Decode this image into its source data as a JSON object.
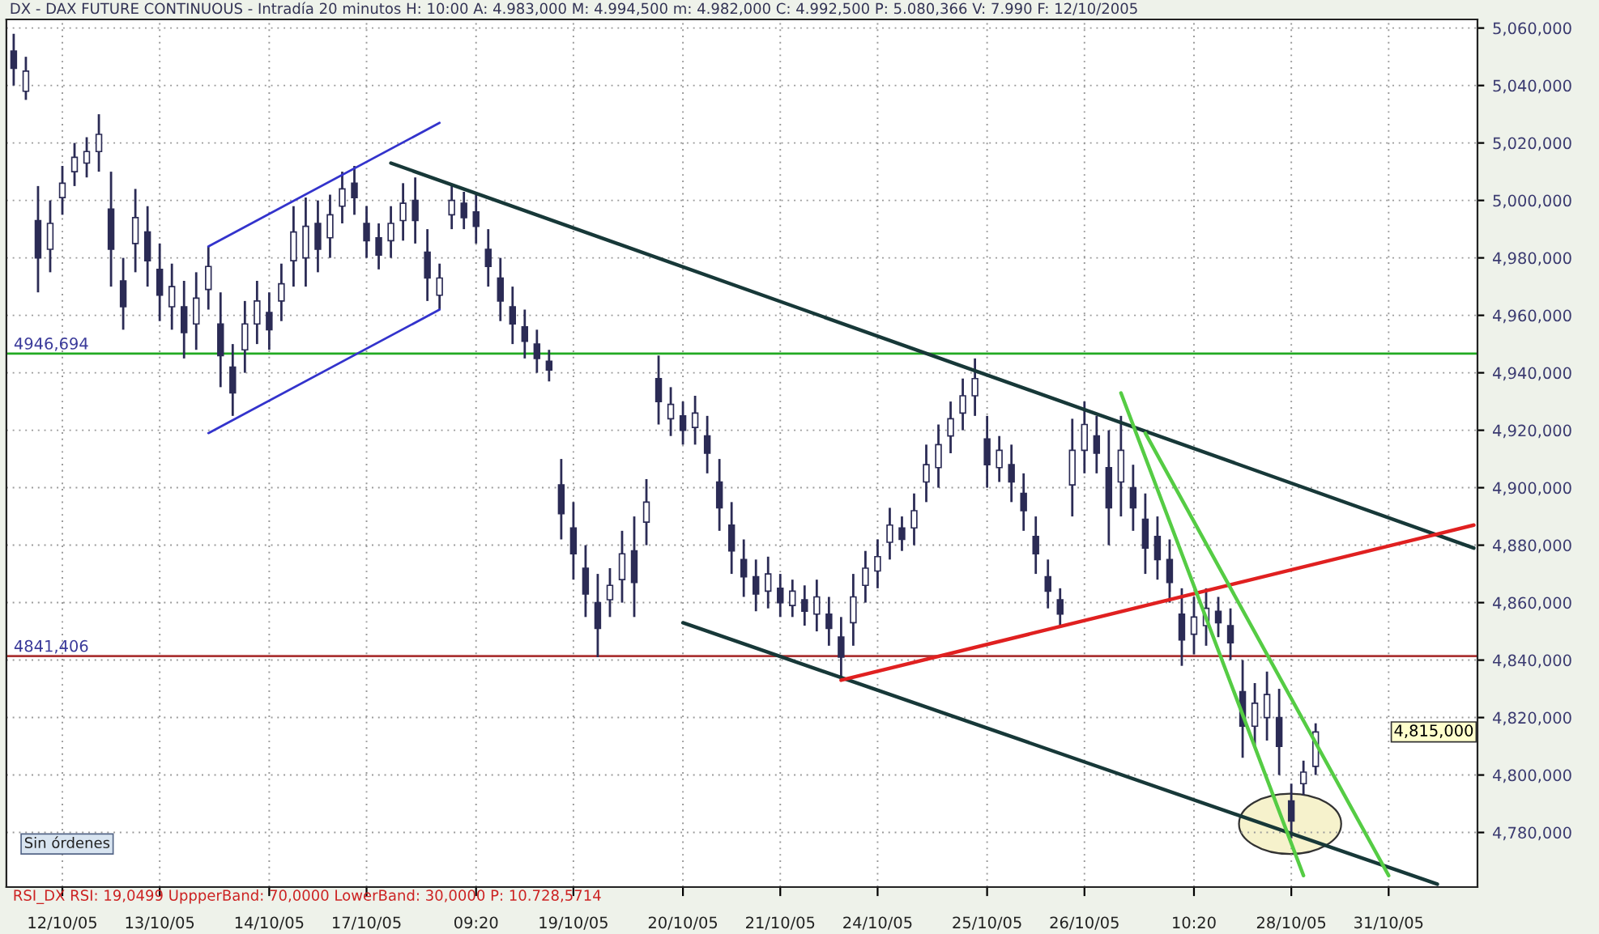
{
  "chart_data": {
    "type": "candlestick",
    "title": "DX - DAX FUTURE CONTINUOUS - Intradía 20 minutos H: 10:00 A: 4.983,000 M: 4.994,500 m: 4.982,000 C: 4.992,500 P: 5.080,366 V: 7.990 F: 12/10/2005",
    "categories": [
      null,
      null,
      null,
      null,
      "12/10/05",
      null,
      null,
      null,
      null,
      null,
      null,
      null,
      "13/10/05",
      null,
      null,
      null,
      null,
      null,
      null,
      null,
      null,
      "14/10/05",
      null,
      null,
      null,
      null,
      null,
      null,
      null,
      "17/10/05",
      null,
      null,
      null,
      null,
      null,
      null,
      null,
      null,
      "09:20",
      null,
      null,
      null,
      null,
      null,
      null,
      null,
      "19/10/05",
      null,
      null,
      null,
      null,
      null,
      null,
      null,
      null,
      "20/10/05",
      null,
      null,
      null,
      null,
      null,
      null,
      null,
      "21/10/05",
      null,
      null,
      null,
      null,
      null,
      null,
      null,
      "24/10/05",
      null,
      null,
      null,
      null,
      null,
      null,
      null,
      null,
      "25/10/05",
      null,
      null,
      null,
      null,
      null,
      null,
      null,
      "26/10/05",
      null,
      null,
      null,
      null,
      null,
      null,
      null,
      null,
      "10:20",
      null,
      null,
      null,
      null,
      null,
      null,
      null,
      "28/10/05",
      null,
      null,
      null,
      null,
      null,
      null,
      null,
      "31/10/05",
      null,
      null,
      null,
      null,
      null,
      null,
      null
    ],
    "ylim": [
      4761000,
      5063000
    ],
    "yticks": [
      {
        "value": 4780000,
        "label": "4,780,000"
      },
      {
        "value": 4800000,
        "label": "4,800,000"
      },
      {
        "value": 4820000,
        "label": "4,820,000"
      },
      {
        "value": 4840000,
        "label": "4,840,000"
      },
      {
        "value": 4860000,
        "label": "4,860,000"
      },
      {
        "value": 4880000,
        "label": "4,880,000"
      },
      {
        "value": 4900000,
        "label": "4,900,000"
      },
      {
        "value": 4920000,
        "label": "4,920,000"
      },
      {
        "value": 4940000,
        "label": "4,940,000"
      },
      {
        "value": 4960000,
        "label": "4,960,000"
      },
      {
        "value": 4980000,
        "label": "4,980,000"
      },
      {
        "value": 5000000,
        "label": "5,000,000"
      },
      {
        "value": 5020000,
        "label": "5,020,000"
      },
      {
        "value": 5040000,
        "label": "5,040,000"
      },
      {
        "value": 5060000,
        "label": "5,060,000"
      }
    ],
    "grid": true,
    "ref_lines": [
      {
        "axis": "y",
        "value": 4946694,
        "label": "4946,694",
        "color": "#22aa22"
      },
      {
        "axis": "y",
        "value": 4841406,
        "label": "4841,406",
        "color": "#aa3333"
      }
    ],
    "annotations": [
      "4,815,000",
      "Sin órdenes",
      "RSI_DX RSI: 19,0499 UppperBand: 70,0000 LowerBand: 30,0000 P: 10.728,5714"
    ],
    "series": [
      {
        "type": "candlestick",
        "color": "#2b2b55",
        "ohlc": [
          [
            5052000,
            5058000,
            5040000,
            5046000
          ],
          [
            5038000,
            5050000,
            5035000,
            5045000
          ],
          [
            4993000,
            5005000,
            4968000,
            4980000
          ],
          [
            4983000,
            5000000,
            4975000,
            4992000
          ],
          [
            5001000,
            5012000,
            4995000,
            5006000
          ],
          [
            5010000,
            5020000,
            5005000,
            5015000
          ],
          [
            5013000,
            5022000,
            5008000,
            5017000
          ],
          [
            5017000,
            5030000,
            5010000,
            5023000
          ],
          [
            4997000,
            5010000,
            4970000,
            4983000
          ],
          [
            4972000,
            4980000,
            4955000,
            4963000
          ],
          [
            4985000,
            5004000,
            4975000,
            4994000
          ],
          [
            4989000,
            4998000,
            4970000,
            4979000
          ],
          [
            4976000,
            4985000,
            4958000,
            4967000
          ],
          [
            4963000,
            4978000,
            4955000,
            4970000
          ],
          [
            4963000,
            4972000,
            4945000,
            4954000
          ],
          [
            4957000,
            4975000,
            4948000,
            4966000
          ],
          [
            4969000,
            4984000,
            4962000,
            4977000
          ],
          [
            4957000,
            4968000,
            4935000,
            4946000
          ],
          [
            4942000,
            4950000,
            4925000,
            4933000
          ],
          [
            4948000,
            4965000,
            4940000,
            4957000
          ],
          [
            4957000,
            4972000,
            4950000,
            4965000
          ],
          [
            4961000,
            4968000,
            4948000,
            4955000
          ],
          [
            4965000,
            4978000,
            4958000,
            4971000
          ],
          [
            4979000,
            4998000,
            4970000,
            4989000
          ],
          [
            4980000,
            5001000,
            4970000,
            4991000
          ],
          [
            4992000,
            5000000,
            4975000,
            4983000
          ],
          [
            4987000,
            5002000,
            4980000,
            4995000
          ],
          [
            4998000,
            5010000,
            4992000,
            5004000
          ],
          [
            5006000,
            5012000,
            4995000,
            5001000
          ],
          [
            4992000,
            4998000,
            4980000,
            4986000
          ],
          [
            4987000,
            4992000,
            4976000,
            4981000
          ],
          [
            4986000,
            4998000,
            4980000,
            4992000
          ],
          [
            4993000,
            5006000,
            4986000,
            4999000
          ],
          [
            5000000,
            5008000,
            4985000,
            4993000
          ],
          [
            4982000,
            4990000,
            4965000,
            4973000
          ],
          [
            4967000,
            4978000,
            4962000,
            4973000
          ],
          [
            4995000,
            5005000,
            4990000,
            5000000
          ],
          [
            4999000,
            5003000,
            4990000,
            4994000
          ],
          [
            4996000,
            5002000,
            4985000,
            4991000
          ],
          [
            4983000,
            4990000,
            4970000,
            4977000
          ],
          [
            4973000,
            4980000,
            4958000,
            4965000
          ],
          [
            4963000,
            4970000,
            4950000,
            4957000
          ],
          [
            4956000,
            4962000,
            4945000,
            4951000
          ],
          [
            4950000,
            4955000,
            4940000,
            4945000
          ],
          [
            4944000,
            4948000,
            4937000,
            4941000
          ],
          [
            4901000,
            4910000,
            4882000,
            4891000
          ],
          [
            4886000,
            4895000,
            4868000,
            4877000
          ],
          [
            4872000,
            4880000,
            4855000,
            4863000
          ],
          [
            4860000,
            4870000,
            4841000,
            4851000
          ],
          [
            4861000,
            4872000,
            4855000,
            4866000
          ],
          [
            4868000,
            4885000,
            4860000,
            4877000
          ],
          [
            4878000,
            4890000,
            4855000,
            4867000
          ],
          [
            4888000,
            4903000,
            4880000,
            4895000
          ],
          [
            4938000,
            4946000,
            4922000,
            4930000
          ],
          [
            4924000,
            4935000,
            4918000,
            4929000
          ],
          [
            4925000,
            4930000,
            4915000,
            4920000
          ],
          [
            4921000,
            4932000,
            4915000,
            4926000
          ],
          [
            4918000,
            4925000,
            4905000,
            4912000
          ],
          [
            4902000,
            4910000,
            4885000,
            4893000
          ],
          [
            4887000,
            4895000,
            4870000,
            4878000
          ],
          [
            4875000,
            4882000,
            4862000,
            4869000
          ],
          [
            4869000,
            4875000,
            4857000,
            4863000
          ],
          [
            4864000,
            4876000,
            4858000,
            4870000
          ],
          [
            4865000,
            4870000,
            4855000,
            4860000
          ],
          [
            4859000,
            4868000,
            4855000,
            4864000
          ],
          [
            4861000,
            4866000,
            4852000,
            4857000
          ],
          [
            4856000,
            4868000,
            4850000,
            4862000
          ],
          [
            4856000,
            4862000,
            4845000,
            4851000
          ],
          [
            4848000,
            4855000,
            4834000,
            4841000
          ],
          [
            4853000,
            4870000,
            4845000,
            4862000
          ],
          [
            4866000,
            4878000,
            4860000,
            4872000
          ],
          [
            4871000,
            4882000,
            4865000,
            4876000
          ],
          [
            4881000,
            4893000,
            4875000,
            4887000
          ],
          [
            4886000,
            4890000,
            4878000,
            4882000
          ],
          [
            4886000,
            4898000,
            4880000,
            4892000
          ],
          [
            4902000,
            4915000,
            4895000,
            4908000
          ],
          [
            4907000,
            4922000,
            4900000,
            4915000
          ],
          [
            4918000,
            4930000,
            4912000,
            4924000
          ],
          [
            4926000,
            4938000,
            4920000,
            4932000
          ],
          [
            4932000,
            4945000,
            4925000,
            4938000
          ],
          [
            4917000,
            4925000,
            4900000,
            4908000
          ],
          [
            4907000,
            4918000,
            4902000,
            4913000
          ],
          [
            4908000,
            4915000,
            4895000,
            4902000
          ],
          [
            4898000,
            4905000,
            4885000,
            4892000
          ],
          [
            4883000,
            4890000,
            4870000,
            4877000
          ],
          [
            4869000,
            4875000,
            4858000,
            4864000
          ],
          [
            4861000,
            4865000,
            4852000,
            4856000
          ],
          [
            4901000,
            4924000,
            4890000,
            4913000
          ],
          [
            4913000,
            4930000,
            4905000,
            4922000
          ],
          [
            4918000,
            4925000,
            4905000,
            4912000
          ],
          [
            4907000,
            4920000,
            4880000,
            4893000
          ],
          [
            4902000,
            4925000,
            4890000,
            4913000
          ],
          [
            4900000,
            4908000,
            4885000,
            4893000
          ],
          [
            4889000,
            4898000,
            4870000,
            4879000
          ],
          [
            4883000,
            4890000,
            4868000,
            4875000
          ],
          [
            4875000,
            4882000,
            4860000,
            4867000
          ],
          [
            4856000,
            4865000,
            4838000,
            4847000
          ],
          [
            4849000,
            4862000,
            4842000,
            4855000
          ],
          [
            4852000,
            4865000,
            4845000,
            4858000
          ],
          [
            4857000,
            4862000,
            4848000,
            4853000
          ],
          [
            4852000,
            4858000,
            4840000,
            4846000
          ],
          [
            4829000,
            4840000,
            4806000,
            4817000
          ],
          [
            4817000,
            4832000,
            4810000,
            4825000
          ],
          [
            4820000,
            4836000,
            4812000,
            4828000
          ],
          [
            4820000,
            4830000,
            4800000,
            4810000
          ],
          [
            4791000,
            4797000,
            4778000,
            4784000
          ],
          [
            4797000,
            4805000,
            4793000,
            4801000
          ],
          [
            4803000,
            4818000,
            4800000,
            4815000
          ],
          null,
          null,
          null,
          null,
          null,
          null,
          null,
          null,
          null,
          null,
          null,
          null,
          null
        ]
      },
      {
        "type": "line",
        "color": "#3333cc",
        "values": [
          null,
          null,
          null,
          null,
          null,
          null,
          null,
          null,
          null,
          null,
          null,
          null,
          null,
          null,
          null,
          null,
          4984000,
          null,
          null,
          null,
          null,
          null,
          null,
          null,
          null,
          null,
          null,
          null,
          null,
          null,
          null,
          null,
          null,
          null,
          null,
          5027000,
          null,
          null,
          null,
          null,
          null,
          null,
          null,
          null,
          null,
          null,
          null,
          null,
          null,
          null,
          null,
          null,
          null,
          null,
          null,
          null,
          null,
          null,
          null,
          null,
          null,
          null,
          null,
          null,
          null,
          null,
          null,
          null,
          null,
          null,
          null,
          null,
          null,
          null,
          null,
          null,
          null,
          null,
          null,
          null,
          null,
          null,
          null,
          null,
          null,
          null,
          null,
          null,
          null,
          null,
          null,
          null,
          null,
          null,
          null,
          null,
          null,
          null,
          null,
          null,
          null,
          null,
          null,
          null,
          null,
          null,
          null,
          null,
          null,
          null,
          null,
          null,
          null,
          null,
          null,
          null,
          null,
          null,
          null,
          null,
          null
        ]
      },
      {
        "type": "line",
        "color": "#3333cc",
        "values": [
          null,
          null,
          null,
          null,
          null,
          null,
          null,
          null,
          null,
          null,
          null,
          null,
          null,
          null,
          null,
          null,
          4919000,
          null,
          null,
          null,
          null,
          null,
          null,
          null,
          null,
          null,
          null,
          null,
          null,
          null,
          null,
          null,
          null,
          null,
          null,
          4962000,
          null,
          null,
          null,
          null,
          null,
          null,
          null,
          null,
          null,
          null,
          null,
          null,
          null,
          null,
          null,
          null,
          null,
          null,
          null,
          null,
          null,
          null,
          null,
          null,
          null,
          null,
          null,
          null,
          null,
          null,
          null,
          null,
          null,
          null,
          null,
          null,
          null,
          null,
          null,
          null,
          null,
          null,
          null,
          null,
          null,
          null,
          null,
          null,
          null,
          null,
          null,
          null,
          null,
          null,
          null,
          null,
          null,
          null,
          null,
          null,
          null,
          null,
          null,
          null,
          null,
          null,
          null,
          null,
          null,
          null,
          null,
          null,
          null,
          null,
          null,
          null,
          null,
          null,
          null,
          null,
          null,
          null,
          null,
          null,
          null
        ]
      },
      {
        "type": "line",
        "color": "#173838",
        "values": [
          null,
          null,
          null,
          null,
          null,
          null,
          null,
          null,
          null,
          null,
          null,
          null,
          null,
          null,
          null,
          null,
          null,
          null,
          null,
          null,
          null,
          null,
          null,
          null,
          null,
          null,
          null,
          null,
          null,
          null,
          null,
          5013000,
          null,
          null,
          null,
          null,
          null,
          null,
          null,
          null,
          null,
          null,
          null,
          null,
          null,
          null,
          null,
          null,
          null,
          null,
          null,
          null,
          null,
          null,
          null,
          null,
          null,
          null,
          null,
          null,
          null,
          null,
          null,
          null,
          null,
          null,
          null,
          null,
          null,
          null,
          null,
          null,
          null,
          null,
          null,
          null,
          null,
          null,
          null,
          null,
          null,
          null,
          null,
          null,
          null,
          null,
          null,
          null,
          null,
          null,
          null,
          null,
          null,
          null,
          null,
          null,
          null,
          null,
          null,
          null,
          null,
          null,
          null,
          null,
          null,
          null,
          null,
          null,
          null,
          null,
          null,
          null,
          null,
          null,
          null,
          null,
          null,
          null,
          null,
          null,
          4879000
        ]
      },
      {
        "type": "line",
        "color": "#173838",
        "values": [
          null,
          null,
          null,
          null,
          null,
          null,
          null,
          null,
          null,
          null,
          null,
          null,
          null,
          null,
          null,
          null,
          null,
          null,
          null,
          null,
          null,
          null,
          null,
          null,
          null,
          null,
          null,
          null,
          null,
          null,
          null,
          null,
          null,
          null,
          null,
          null,
          null,
          null,
          null,
          null,
          null,
          null,
          null,
          null,
          null,
          null,
          null,
          null,
          null,
          null,
          null,
          null,
          null,
          null,
          null,
          4853000,
          null,
          null,
          null,
          null,
          null,
          null,
          null,
          null,
          null,
          null,
          null,
          null,
          null,
          null,
          null,
          null,
          null,
          null,
          null,
          null,
          null,
          null,
          null,
          null,
          null,
          null,
          null,
          null,
          null,
          null,
          null,
          null,
          null,
          null,
          null,
          null,
          null,
          null,
          null,
          null,
          null,
          null,
          null,
          null,
          null,
          null,
          null,
          null,
          null,
          null,
          null,
          null,
          null,
          null,
          null,
          null,
          null,
          null,
          null,
          null,
          null,
          4762000,
          null,
          null,
          null
        ]
      },
      {
        "type": "line",
        "color": "#e02020",
        "values": [
          null,
          null,
          null,
          null,
          null,
          null,
          null,
          null,
          null,
          null,
          null,
          null,
          null,
          null,
          null,
          null,
          null,
          null,
          null,
          null,
          null,
          null,
          null,
          null,
          null,
          null,
          null,
          null,
          null,
          null,
          null,
          null,
          null,
          null,
          null,
          null,
          null,
          null,
          null,
          null,
          null,
          null,
          null,
          null,
          null,
          null,
          null,
          null,
          null,
          null,
          null,
          null,
          null,
          null,
          null,
          null,
          null,
          null,
          null,
          null,
          null,
          null,
          null,
          null,
          null,
          null,
          null,
          null,
          4833000,
          null,
          null,
          null,
          null,
          null,
          null,
          null,
          null,
          null,
          null,
          null,
          null,
          null,
          null,
          null,
          null,
          null,
          null,
          null,
          null,
          null,
          null,
          null,
          null,
          null,
          null,
          null,
          null,
          null,
          null,
          null,
          null,
          null,
          null,
          null,
          null,
          null,
          null,
          null,
          null,
          null,
          null,
          null,
          null,
          null,
          null,
          null,
          null,
          null,
          null,
          null,
          4887000
        ]
      },
      {
        "type": "line",
        "color": "#55cc44",
        "values": [
          null,
          null,
          null,
          null,
          null,
          null,
          null,
          null,
          null,
          null,
          null,
          null,
          null,
          null,
          null,
          null,
          null,
          null,
          null,
          null,
          null,
          null,
          null,
          null,
          null,
          null,
          null,
          null,
          null,
          null,
          null,
          null,
          null,
          null,
          null,
          null,
          null,
          null,
          null,
          null,
          null,
          null,
          null,
          null,
          null,
          null,
          null,
          null,
          null,
          null,
          null,
          null,
          null,
          null,
          null,
          null,
          null,
          null,
          null,
          null,
          null,
          null,
          null,
          null,
          null,
          null,
          null,
          null,
          null,
          null,
          null,
          null,
          null,
          null,
          null,
          null,
          null,
          null,
          null,
          null,
          null,
          null,
          null,
          null,
          null,
          null,
          null,
          null,
          null,
          null,
          null,
          4933000,
          null,
          null,
          null,
          null,
          null,
          null,
          null,
          null,
          null,
          null,
          null,
          null,
          null,
          null,
          4765000,
          null,
          null,
          null,
          null,
          null,
          null,
          null,
          null,
          null,
          null,
          null,
          null,
          null,
          null
        ]
      },
      {
        "type": "line",
        "color": "#55cc44",
        "values": [
          null,
          null,
          null,
          null,
          null,
          null,
          null,
          null,
          null,
          null,
          null,
          null,
          null,
          null,
          null,
          null,
          null,
          null,
          null,
          null,
          null,
          null,
          null,
          null,
          null,
          null,
          null,
          null,
          null,
          null,
          null,
          null,
          null,
          null,
          null,
          null,
          null,
          null,
          null,
          null,
          null,
          null,
          null,
          null,
          null,
          null,
          null,
          null,
          null,
          null,
          null,
          null,
          null,
          null,
          null,
          null,
          null,
          null,
          null,
          null,
          null,
          null,
          null,
          null,
          null,
          null,
          null,
          null,
          null,
          null,
          null,
          null,
          null,
          null,
          null,
          null,
          null,
          null,
          null,
          null,
          null,
          null,
          null,
          null,
          null,
          null,
          null,
          null,
          null,
          null,
          null,
          null,
          null,
          4919000,
          null,
          null,
          null,
          null,
          null,
          null,
          null,
          null,
          null,
          null,
          null,
          null,
          null,
          null,
          null,
          null,
          null,
          null,
          null,
          4765000,
          null,
          null,
          null,
          null,
          null,
          null,
          null
        ]
      }
    ]
  }
}
